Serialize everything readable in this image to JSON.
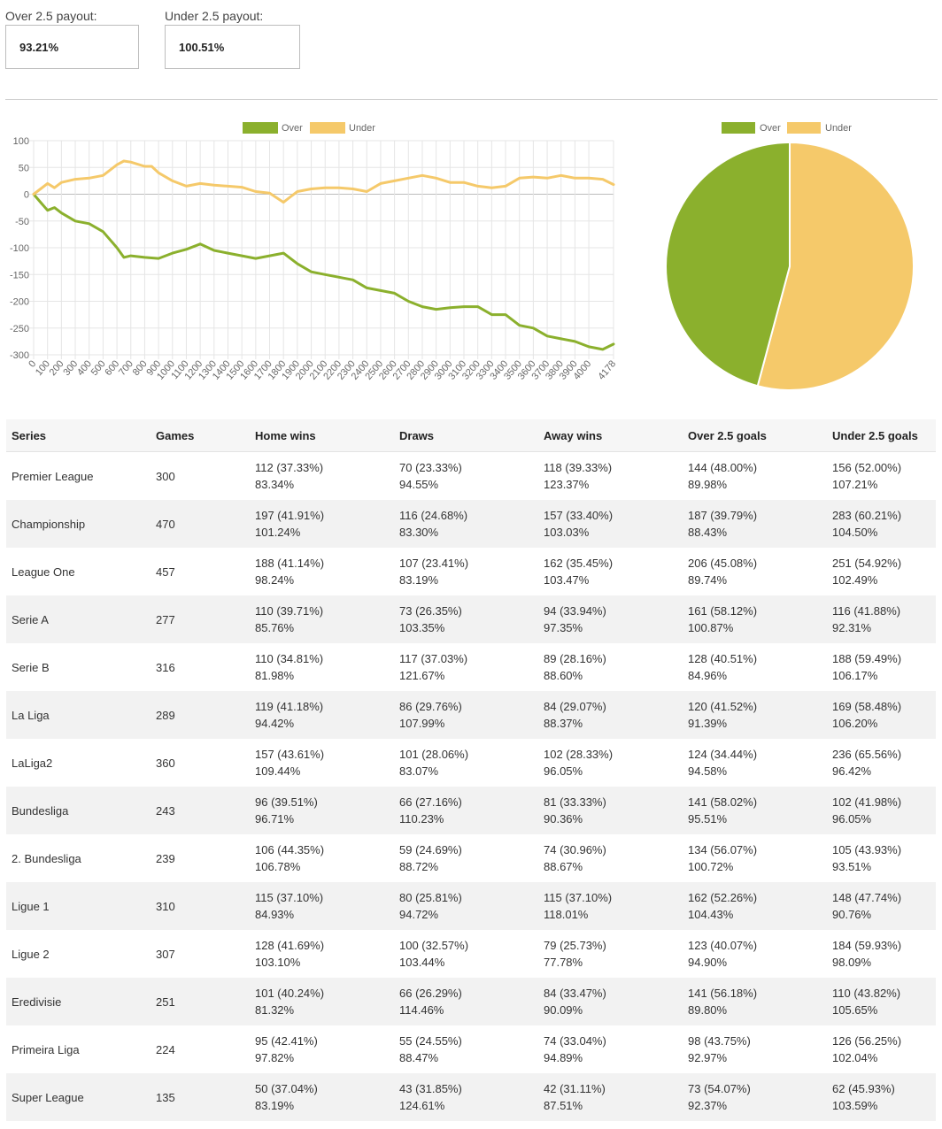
{
  "payouts": {
    "over_label": "Over 2.5 payout:",
    "over_value": "93.21%",
    "under_label": "Under 2.5 payout:",
    "under_value": "100.51%"
  },
  "colors": {
    "over": "#8bb02d",
    "under": "#f5c96a",
    "grid": "#e5e5e5",
    "zero_line": "#bdbdbd"
  },
  "chart_data": [
    {
      "type": "line",
      "title": "",
      "legend_position": "top",
      "legend": [
        "Over",
        "Under"
      ],
      "xlabel": "",
      "ylabel": "",
      "x_ticks": [
        "0",
        "100",
        "200",
        "300",
        "400",
        "500",
        "600",
        "700",
        "800",
        "900",
        "1000",
        "1100",
        "1200",
        "1300",
        "1400",
        "1500",
        "1600",
        "1700",
        "1800",
        "1900",
        "2000",
        "2100",
        "2200",
        "2300",
        "2400",
        "2500",
        "2600",
        "2700",
        "2800",
        "2900",
        "3000",
        "3100",
        "3200",
        "3300",
        "3400",
        "3500",
        "3600",
        "3700",
        "3800",
        "3900",
        "4000",
        "4178"
      ],
      "y_ticks": [
        100,
        50,
        0,
        -50,
        -100,
        -150,
        -200,
        -250,
        -300
      ],
      "xlim": [
        0,
        4178
      ],
      "ylim": [
        -300,
        100
      ],
      "series": [
        {
          "name": "Over",
          "x": [
            0,
            50,
            100,
            150,
            200,
            300,
            400,
            500,
            600,
            650,
            700,
            800,
            900,
            1000,
            1100,
            1200,
            1300,
            1400,
            1500,
            1600,
            1700,
            1800,
            1900,
            2000,
            2100,
            2200,
            2300,
            2400,
            2500,
            2600,
            2700,
            2800,
            2900,
            3000,
            3100,
            3200,
            3300,
            3400,
            3500,
            3600,
            3700,
            3800,
            3900,
            4000,
            4100,
            4178
          ],
          "y": [
            0,
            -15,
            -30,
            -25,
            -35,
            -50,
            -55,
            -70,
            -100,
            -118,
            -115,
            -118,
            -120,
            -110,
            -103,
            -93,
            -105,
            -110,
            -115,
            -120,
            -115,
            -110,
            -130,
            -145,
            -150,
            -155,
            -160,
            -175,
            -180,
            -185,
            -200,
            -210,
            -215,
            -212,
            -210,
            -210,
            -225,
            -225,
            -245,
            -250,
            -265,
            -270,
            -275,
            -285,
            -290,
            -280
          ]
        },
        {
          "name": "Under",
          "x": [
            0,
            50,
            100,
            150,
            200,
            300,
            400,
            500,
            600,
            650,
            700,
            800,
            850,
            900,
            1000,
            1100,
            1200,
            1300,
            1400,
            1500,
            1600,
            1700,
            1800,
            1850,
            1900,
            2000,
            2100,
            2200,
            2300,
            2400,
            2500,
            2600,
            2700,
            2800,
            2900,
            3000,
            3100,
            3200,
            3300,
            3400,
            3500,
            3600,
            3700,
            3800,
            3900,
            4000,
            4100,
            4178
          ],
          "y": [
            0,
            10,
            20,
            12,
            22,
            28,
            30,
            35,
            55,
            62,
            60,
            52,
            52,
            40,
            25,
            15,
            20,
            17,
            15,
            13,
            5,
            2,
            -15,
            -5,
            5,
            10,
            12,
            12,
            10,
            5,
            20,
            25,
            30,
            35,
            30,
            22,
            22,
            15,
            12,
            15,
            30,
            32,
            30,
            35,
            30,
            30,
            28,
            18
          ]
        }
      ]
    },
    {
      "type": "pie",
      "title": "",
      "legend_position": "top",
      "labels": [
        "Over",
        "Under"
      ],
      "values": [
        45.83,
        54.17
      ]
    }
  ],
  "table": {
    "headers": [
      "Series",
      "Games",
      "Home wins",
      "Draws",
      "Away wins",
      "Over 2.5 goals",
      "Under 2.5 goals"
    ],
    "rows": [
      {
        "series": "Premier League",
        "games": "300",
        "home": [
          "112 (37.33%)",
          "83.34%"
        ],
        "draws": [
          "70 (23.33%)",
          "94.55%"
        ],
        "away": [
          "118 (39.33%)",
          "123.37%"
        ],
        "over": [
          "144 (48.00%)",
          "89.98%"
        ],
        "under": [
          "156 (52.00%)",
          "107.21%"
        ]
      },
      {
        "series": "Championship",
        "games": "470",
        "home": [
          "197 (41.91%)",
          "101.24%"
        ],
        "draws": [
          "116 (24.68%)",
          "83.30%"
        ],
        "away": [
          "157 (33.40%)",
          "103.03%"
        ],
        "over": [
          "187 (39.79%)",
          "88.43%"
        ],
        "under": [
          "283 (60.21%)",
          "104.50%"
        ]
      },
      {
        "series": "League One",
        "games": "457",
        "home": [
          "188 (41.14%)",
          "98.24%"
        ],
        "draws": [
          "107 (23.41%)",
          "83.19%"
        ],
        "away": [
          "162 (35.45%)",
          "103.47%"
        ],
        "over": [
          "206 (45.08%)",
          "89.74%"
        ],
        "under": [
          "251 (54.92%)",
          "102.49%"
        ]
      },
      {
        "series": "Serie A",
        "games": "277",
        "home": [
          "110 (39.71%)",
          "85.76%"
        ],
        "draws": [
          "73 (26.35%)",
          "103.35%"
        ],
        "away": [
          "94 (33.94%)",
          "97.35%"
        ],
        "over": [
          "161 (58.12%)",
          "100.87%"
        ],
        "under": [
          "116 (41.88%)",
          "92.31%"
        ]
      },
      {
        "series": "Serie B",
        "games": "316",
        "home": [
          "110 (34.81%)",
          "81.98%"
        ],
        "draws": [
          "117 (37.03%)",
          "121.67%"
        ],
        "away": [
          "89 (28.16%)",
          "88.60%"
        ],
        "over": [
          "128 (40.51%)",
          "84.96%"
        ],
        "under": [
          "188 (59.49%)",
          "106.17%"
        ]
      },
      {
        "series": "La Liga",
        "games": "289",
        "home": [
          "119 (41.18%)",
          "94.42%"
        ],
        "draws": [
          "86 (29.76%)",
          "107.99%"
        ],
        "away": [
          "84 (29.07%)",
          "88.37%"
        ],
        "over": [
          "120 (41.52%)",
          "91.39%"
        ],
        "under": [
          "169 (58.48%)",
          "106.20%"
        ]
      },
      {
        "series": "LaLiga2",
        "games": "360",
        "home": [
          "157 (43.61%)",
          "109.44%"
        ],
        "draws": [
          "101 (28.06%)",
          "83.07%"
        ],
        "away": [
          "102 (28.33%)",
          "96.05%"
        ],
        "over": [
          "124 (34.44%)",
          "94.58%"
        ],
        "under": [
          "236 (65.56%)",
          "96.42%"
        ]
      },
      {
        "series": "Bundesliga",
        "games": "243",
        "home": [
          "96 (39.51%)",
          "96.71%"
        ],
        "draws": [
          "66 (27.16%)",
          "110.23%"
        ],
        "away": [
          "81 (33.33%)",
          "90.36%"
        ],
        "over": [
          "141 (58.02%)",
          "95.51%"
        ],
        "under": [
          "102 (41.98%)",
          "96.05%"
        ]
      },
      {
        "series": "2. Bundesliga",
        "games": "239",
        "home": [
          "106 (44.35%)",
          "106.78%"
        ],
        "draws": [
          "59 (24.69%)",
          "88.72%"
        ],
        "away": [
          "74 (30.96%)",
          "88.67%"
        ],
        "over": [
          "134 (56.07%)",
          "100.72%"
        ],
        "under": [
          "105 (43.93%)",
          "93.51%"
        ]
      },
      {
        "series": "Ligue 1",
        "games": "310",
        "home": [
          "115 (37.10%)",
          "84.93%"
        ],
        "draws": [
          "80 (25.81%)",
          "94.72%"
        ],
        "away": [
          "115 (37.10%)",
          "118.01%"
        ],
        "over": [
          "162 (52.26%)",
          "104.43%"
        ],
        "under": [
          "148 (47.74%)",
          "90.76%"
        ]
      },
      {
        "series": "Ligue 2",
        "games": "307",
        "home": [
          "128 (41.69%)",
          "103.10%"
        ],
        "draws": [
          "100 (32.57%)",
          "103.44%"
        ],
        "away": [
          "79 (25.73%)",
          "77.78%"
        ],
        "over": [
          "123 (40.07%)",
          "94.90%"
        ],
        "under": [
          "184 (59.93%)",
          "98.09%"
        ]
      },
      {
        "series": "Eredivisie",
        "games": "251",
        "home": [
          "101 (40.24%)",
          "81.32%"
        ],
        "draws": [
          "66 (26.29%)",
          "114.46%"
        ],
        "away": [
          "84 (33.47%)",
          "90.09%"
        ],
        "over": [
          "141 (56.18%)",
          "89.80%"
        ],
        "under": [
          "110 (43.82%)",
          "105.65%"
        ]
      },
      {
        "series": "Primeira Liga",
        "games": "224",
        "home": [
          "95 (42.41%)",
          "97.82%"
        ],
        "draws": [
          "55 (24.55%)",
          "88.47%"
        ],
        "away": [
          "74 (33.04%)",
          "94.89%"
        ],
        "over": [
          "98 (43.75%)",
          "92.97%"
        ],
        "under": [
          "126 (56.25%)",
          "102.04%"
        ]
      },
      {
        "series": "Super League",
        "games": "135",
        "home": [
          "50 (37.04%)",
          "83.19%"
        ],
        "draws": [
          "43 (31.85%)",
          "124.61%"
        ],
        "away": [
          "42 (31.11%)",
          "87.51%"
        ],
        "over": [
          "73 (54.07%)",
          "92.37%"
        ],
        "under": [
          "62 (45.93%)",
          "103.59%"
        ]
      }
    ]
  }
}
